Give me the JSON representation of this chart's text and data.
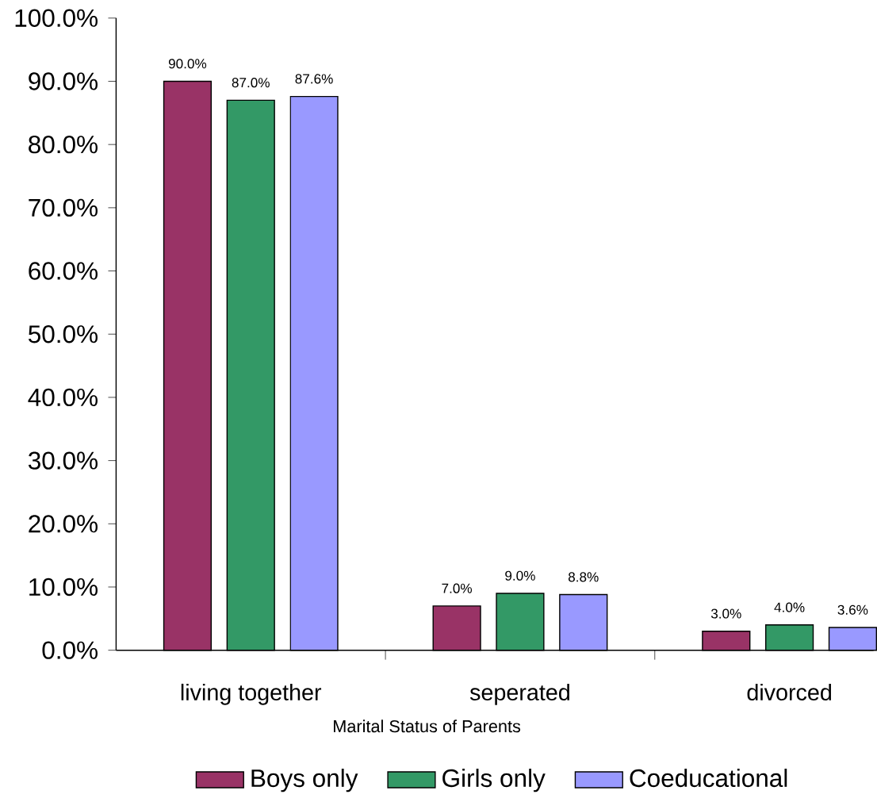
{
  "chart_data": {
    "type": "bar",
    "xlabel": "Marital Status of Parents",
    "categories": [
      "living together",
      "seperated",
      "divorced"
    ],
    "ylim": [
      0,
      100
    ],
    "yticks": [
      {
        "value": 0,
        "label": "0.0%"
      },
      {
        "value": 10,
        "label": "10.0%"
      },
      {
        "value": 20,
        "label": "20.0%"
      },
      {
        "value": 30,
        "label": "30.0%"
      },
      {
        "value": 40,
        "label": "40.0%"
      },
      {
        "value": 50,
        "label": "50.0%"
      },
      {
        "value": 60,
        "label": "60.0%"
      },
      {
        "value": 70,
        "label": "70.0%"
      },
      {
        "value": 80,
        "label": "80.0%"
      },
      {
        "value": 90,
        "label": "90.0%"
      },
      {
        "value": 100,
        "label": "100.0%"
      }
    ],
    "legend": "bottom",
    "series": [
      {
        "name": "Boys only",
        "color": "#993366",
        "values": [
          90,
          7,
          3
        ],
        "value_labels": [
          "90.0%",
          "7.0%",
          "3.0%"
        ]
      },
      {
        "name": "Girls only",
        "color": "#339966",
        "values": [
          87,
          9,
          4
        ],
        "value_labels": [
          "87.0%",
          "9.0%",
          "4.0%"
        ]
      },
      {
        "name": "Coeducational",
        "color": "#9999ff",
        "values": [
          87.6,
          8.8,
          3.6
        ],
        "value_labels": [
          "87.6%",
          "8.8%",
          "3.6%"
        ]
      }
    ]
  }
}
